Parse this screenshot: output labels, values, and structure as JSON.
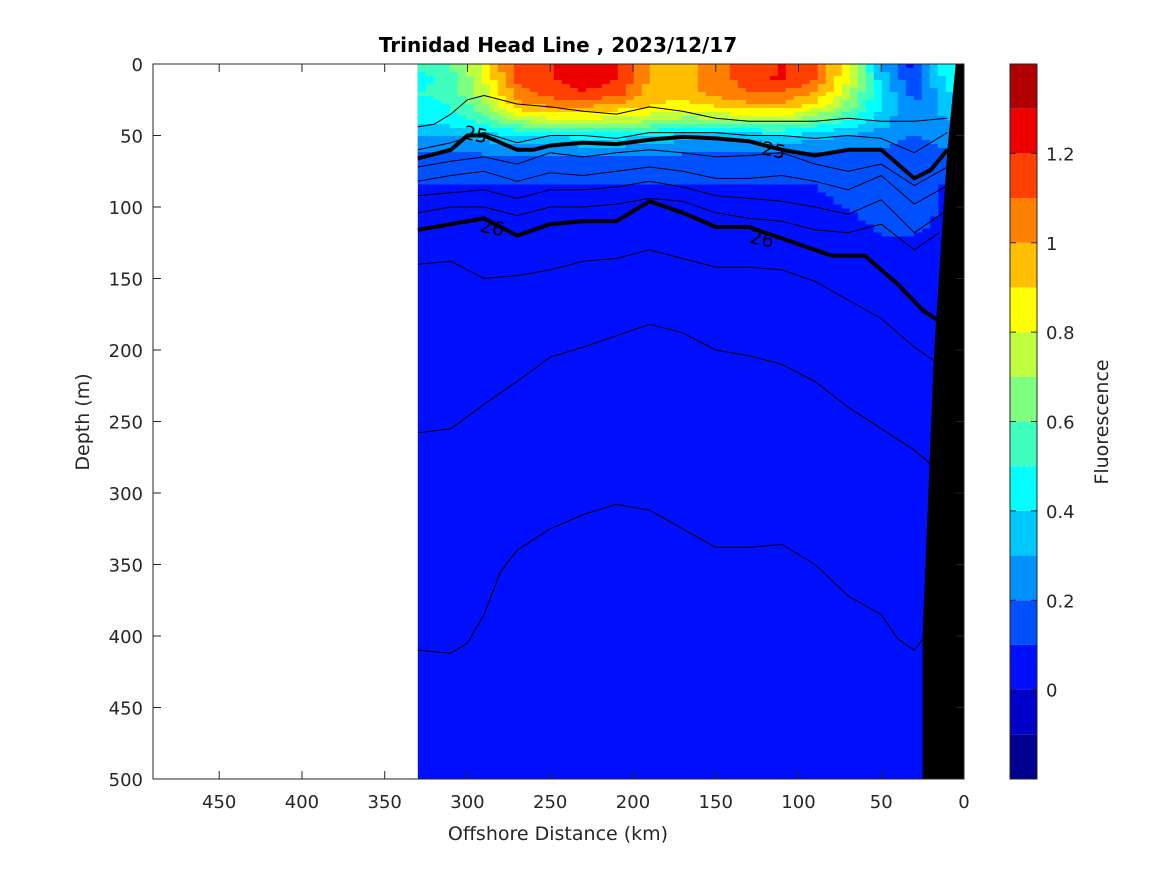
{
  "chart_data": {
    "type": "heatmap",
    "title": "Trinidad Head Line , 2023/12/17",
    "xlabel": "Offshore Distance (km)",
    "ylabel": "Depth (m)",
    "colorbar_label": "Fluorescence",
    "xlim": [
      490,
      0
    ],
    "ylim": [
      0,
      500
    ],
    "x_reversed": true,
    "y_reversed": true,
    "x_ticks": [
      450,
      400,
      350,
      300,
      250,
      200,
      150,
      100,
      50,
      0
    ],
    "y_ticks": [
      0,
      50,
      100,
      150,
      200,
      250,
      300,
      350,
      400,
      450,
      500
    ],
    "colorbar": {
      "range": [
        -0.2,
        1.4
      ],
      "ticks": [
        0,
        0.2,
        0.4,
        0.6,
        0.8,
        1,
        1.2
      ],
      "tick_labels": [
        "0",
        "0.2",
        "0.4",
        "0.6",
        "0.8",
        "1",
        "1.2"
      ],
      "levels": [
        -0.2,
        -0.1,
        0,
        0.1,
        0.2,
        0.3,
        0.4,
        0.5,
        0.6,
        0.7,
        0.8,
        0.9,
        1.0,
        1.1,
        1.2,
        1.3,
        1.4
      ],
      "colors": [
        "#00008f",
        "#0000c8",
        "#0010ff",
        "#0050ff",
        "#0090ff",
        "#00c8ff",
        "#00ffff",
        "#3fffbf",
        "#7fff7f",
        "#bfff3f",
        "#ffff00",
        "#ffbf00",
        "#ff7f00",
        "#ff4000",
        "#ef0000",
        "#b00000"
      ]
    },
    "data_extent_km": [
      330,
      0
    ],
    "fluorescence_surface": {
      "x": [
        330,
        310,
        290,
        270,
        250,
        230,
        210,
        190,
        170,
        150,
        130,
        110,
        90,
        70,
        50,
        30,
        10
      ],
      "depth": [
        0,
        10,
        20,
        30,
        40,
        50,
        60,
        70,
        80,
        90,
        100,
        120,
        140
      ],
      "values": [
        [
          0.55,
          0.6,
          0.85,
          1.15,
          1.2,
          1.25,
          1.22,
          1.0,
          0.95,
          1.05,
          1.15,
          1.2,
          1.1,
          0.85,
          0.3,
          0.05,
          0.5
        ],
        [
          0.45,
          0.55,
          0.8,
          1.15,
          1.2,
          1.25,
          1.2,
          1.0,
          0.95,
          1.05,
          1.15,
          1.22,
          1.1,
          0.8,
          0.35,
          0.1,
          0.45
        ],
        [
          0.5,
          0.55,
          0.75,
          1.05,
          1.15,
          1.2,
          1.15,
          0.95,
          0.95,
          1.05,
          1.1,
          1.1,
          1.0,
          0.75,
          0.4,
          0.15,
          0.4
        ],
        [
          0.45,
          0.5,
          0.65,
          0.95,
          1.0,
          1.0,
          0.95,
          0.9,
          0.85,
          0.9,
          0.95,
          0.95,
          0.85,
          0.65,
          0.4,
          0.2,
          0.35
        ],
        [
          0.4,
          0.45,
          0.55,
          0.7,
          0.75,
          0.75,
          0.75,
          0.7,
          0.65,
          0.65,
          0.7,
          0.7,
          0.6,
          0.5,
          0.35,
          0.2,
          0.3
        ],
        [
          0.3,
          0.3,
          0.35,
          0.4,
          0.4,
          0.45,
          0.45,
          0.4,
          0.35,
          0.35,
          0.35,
          0.4,
          0.35,
          0.3,
          0.25,
          0.2,
          0.25
        ],
        [
          0.22,
          0.22,
          0.22,
          0.25,
          0.25,
          0.25,
          0.25,
          0.25,
          0.22,
          0.22,
          0.22,
          0.22,
          0.22,
          0.2,
          0.2,
          0.15,
          0.2
        ],
        [
          0.15,
          0.15,
          0.15,
          0.15,
          0.15,
          0.15,
          0.15,
          0.15,
          0.15,
          0.15,
          0.15,
          0.15,
          0.15,
          0.15,
          0.15,
          0.12,
          0.12
        ],
        [
          0.12,
          0.12,
          0.12,
          0.12,
          0.12,
          0.12,
          0.12,
          0.12,
          0.12,
          0.12,
          0.12,
          0.12,
          0.12,
          0.15,
          0.2,
          0.15,
          0.1
        ],
        [
          0.08,
          0.08,
          0.08,
          0.08,
          0.08,
          0.08,
          0.08,
          0.08,
          0.08,
          0.08,
          0.08,
          0.08,
          0.08,
          0.15,
          0.2,
          0.15,
          0.08
        ],
        [
          0.06,
          0.06,
          0.06,
          0.06,
          0.06,
          0.06,
          0.06,
          0.06,
          0.06,
          0.06,
          0.06,
          0.06,
          0.06,
          0.1,
          0.15,
          0.2,
          0.06
        ],
        [
          0.05,
          0.05,
          0.05,
          0.05,
          0.05,
          0.05,
          0.05,
          0.05,
          0.05,
          0.05,
          0.05,
          0.05,
          0.05,
          0.05,
          0.1,
          0.1,
          0.05
        ],
        [
          0.05,
          0.05,
          0.05,
          0.05,
          0.05,
          0.05,
          0.05,
          0.05,
          0.05,
          0.05,
          0.05,
          0.05,
          0.05,
          0.05,
          0.05,
          0.05,
          0.05
        ]
      ],
      "deep_value": 0.05
    },
    "bathymetry": {
      "x": [
        0,
        0,
        25,
        25,
        18,
        10,
        5
      ],
      "depth": [
        0,
        500,
        500,
        400,
        200,
        60,
        0
      ]
    },
    "density_contours": [
      {
        "x": [
          330,
          320,
          310,
          300,
          290,
          270,
          250,
          230,
          210,
          190,
          170,
          150,
          130,
          110,
          90,
          70,
          50,
          30,
          10
        ],
        "depth": [
          44,
          42,
          35,
          25,
          22,
          28,
          30,
          33,
          35,
          30,
          33,
          38,
          40,
          40,
          40,
          38,
          40,
          40,
          38
        ]
      },
      {
        "x": [
          330,
          310,
          290,
          270,
          250,
          230,
          210,
          190,
          170,
          150,
          130,
          110,
          90,
          70,
          50,
          30,
          10
        ],
        "depth": [
          60,
          55,
          48,
          55,
          50,
          50,
          52,
          48,
          48,
          48,
          50,
          50,
          52,
          50,
          52,
          62,
          48
        ]
      },
      {
        "x": [
          330,
          310,
          300,
          290,
          280,
          270,
          260,
          250,
          230,
          210,
          190,
          170,
          150,
          130,
          110,
          90,
          70,
          50,
          40,
          30,
          20,
          10
        ],
        "depth": [
          66,
          60,
          50,
          50,
          55,
          60,
          60,
          57,
          55,
          56,
          53,
          51,
          52,
          54,
          60,
          64,
          60,
          60,
          70,
          80,
          74,
          60
        ],
        "bold": true,
        "label": "25",
        "label_positions": [
          [
            295,
            49
          ],
          [
            115,
            60
          ]
        ]
      },
      {
        "x": [
          330,
          310,
          290,
          270,
          250,
          230,
          210,
          190,
          170,
          150,
          130,
          110,
          90,
          70,
          50,
          30,
          10
        ],
        "depth": [
          72,
          68,
          65,
          70,
          62,
          65,
          62,
          60,
          62,
          65,
          64,
          62,
          70,
          75,
          70,
          85,
          72
        ]
      },
      {
        "x": [
          330,
          310,
          290,
          270,
          250,
          230,
          210,
          190,
          170,
          150,
          130,
          110,
          90,
          70,
          50,
          30,
          10
        ],
        "depth": [
          82,
          78,
          75,
          82,
          76,
          78,
          75,
          72,
          75,
          80,
          80,
          78,
          82,
          88,
          78,
          98,
          85
        ]
      },
      {
        "x": [
          330,
          310,
          290,
          270,
          250,
          230,
          210,
          190,
          170,
          150,
          130,
          110,
          90,
          70,
          50,
          30,
          10
        ],
        "depth": [
          92,
          90,
          88,
          94,
          88,
          88,
          86,
          82,
          86,
          92,
          94,
          96,
          100,
          105,
          95,
          118,
          102
        ]
      },
      {
        "x": [
          330,
          310,
          290,
          270,
          250,
          230,
          210,
          190,
          170,
          150,
          130,
          110,
          90,
          70,
          50,
          30,
          15
        ],
        "depth": [
          104,
          100,
          100,
          106,
          100,
          100,
          98,
          94,
          96,
          104,
          108,
          110,
          116,
          118,
          112,
          130,
          118
        ]
      },
      {
        "x": [
          330,
          310,
          290,
          270,
          250,
          230,
          210,
          190,
          170,
          150,
          130,
          110,
          90,
          80,
          60,
          40,
          25,
          15
        ],
        "depth": [
          116,
          112,
          108,
          120,
          112,
          110,
          110,
          96,
          104,
          114,
          114,
          122,
          130,
          134,
          134,
          154,
          172,
          180
        ],
        "bold": true,
        "label": "26",
        "label_positions": [
          [
            285,
            114
          ],
          [
            122,
            122
          ]
        ]
      },
      {
        "x": [
          330,
          310,
          290,
          270,
          250,
          230,
          210,
          190,
          170,
          150,
          130,
          110,
          90,
          70,
          50,
          30,
          15
        ],
        "depth": [
          140,
          138,
          150,
          148,
          144,
          138,
          136,
          130,
          136,
          142,
          142,
          144,
          152,
          165,
          178,
          198,
          210
        ]
      },
      {
        "x": [
          330,
          310,
          290,
          270,
          250,
          230,
          210,
          190,
          170,
          150,
          130,
          110,
          90,
          70,
          50,
          30,
          15
        ],
        "depth": [
          258,
          255,
          238,
          222,
          205,
          198,
          190,
          182,
          188,
          200,
          204,
          210,
          222,
          240,
          255,
          270,
          285
        ]
      },
      {
        "x": [
          330,
          310,
          300,
          290,
          280,
          270,
          250,
          230,
          210,
          190,
          170,
          150,
          130,
          110,
          90,
          70,
          50,
          40,
          30,
          20
        ],
        "depth": [
          410,
          412,
          405,
          385,
          355,
          340,
          325,
          315,
          308,
          312,
          325,
          338,
          338,
          336,
          350,
          372,
          385,
          402,
          410,
          395
        ]
      }
    ]
  }
}
